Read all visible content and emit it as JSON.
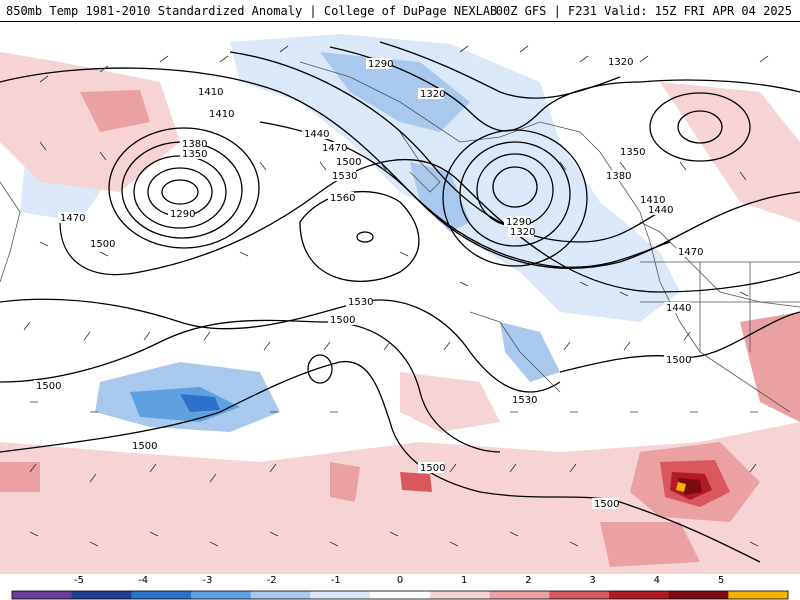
{
  "header": {
    "left_title": "850mb Temp 1981-2010 Standardized Anomaly | College of DuPage NEXLAB",
    "right_title": "00Z GFS | F231 Valid: 15Z FRI APR 04 2025"
  },
  "map": {
    "contour_labels": {
      "l1290a": "1290",
      "l1320a": "1320",
      "l1320b": "1320",
      "l1410a": "1410",
      "l1410b": "1410",
      "l1380a": "1380",
      "l1350a": "1350",
      "l1290b": "1290",
      "l1440a": "1440",
      "l1470a": "1470",
      "l1500a": "1500",
      "l1530a": "1530",
      "l1560a": "1560",
      "l1350b": "1350",
      "l1380b": "1380",
      "l1410c": "1410",
      "l1440b": "1440",
      "l1470b": "1470",
      "l1290c": "1290",
      "l1320c": "1320",
      "l1470c": "1470",
      "l1500b": "1500",
      "l1440c": "1440",
      "l1530b": "1530",
      "l1500c": "1500",
      "l1500d": "1500",
      "l1500e": "1500",
      "l1500f": "1500",
      "l1530c": "1530",
      "l1500g": "1500",
      "l1500h": "1500"
    }
  },
  "colorbar": {
    "ticks": [
      "-5",
      "-4",
      "-3",
      "-2",
      "-1",
      "0",
      "1",
      "2",
      "3",
      "4",
      "5"
    ],
    "colors": [
      "#6a3d9a",
      "#1f3f8f",
      "#2c72c9",
      "#5fa0e0",
      "#a8c8ee",
      "#dbe8f7",
      "#ffffff",
      "#f6d3d5",
      "#eba0a4",
      "#d9585e",
      "#b31b24",
      "#7a0a10",
      "#f2b400"
    ]
  }
}
